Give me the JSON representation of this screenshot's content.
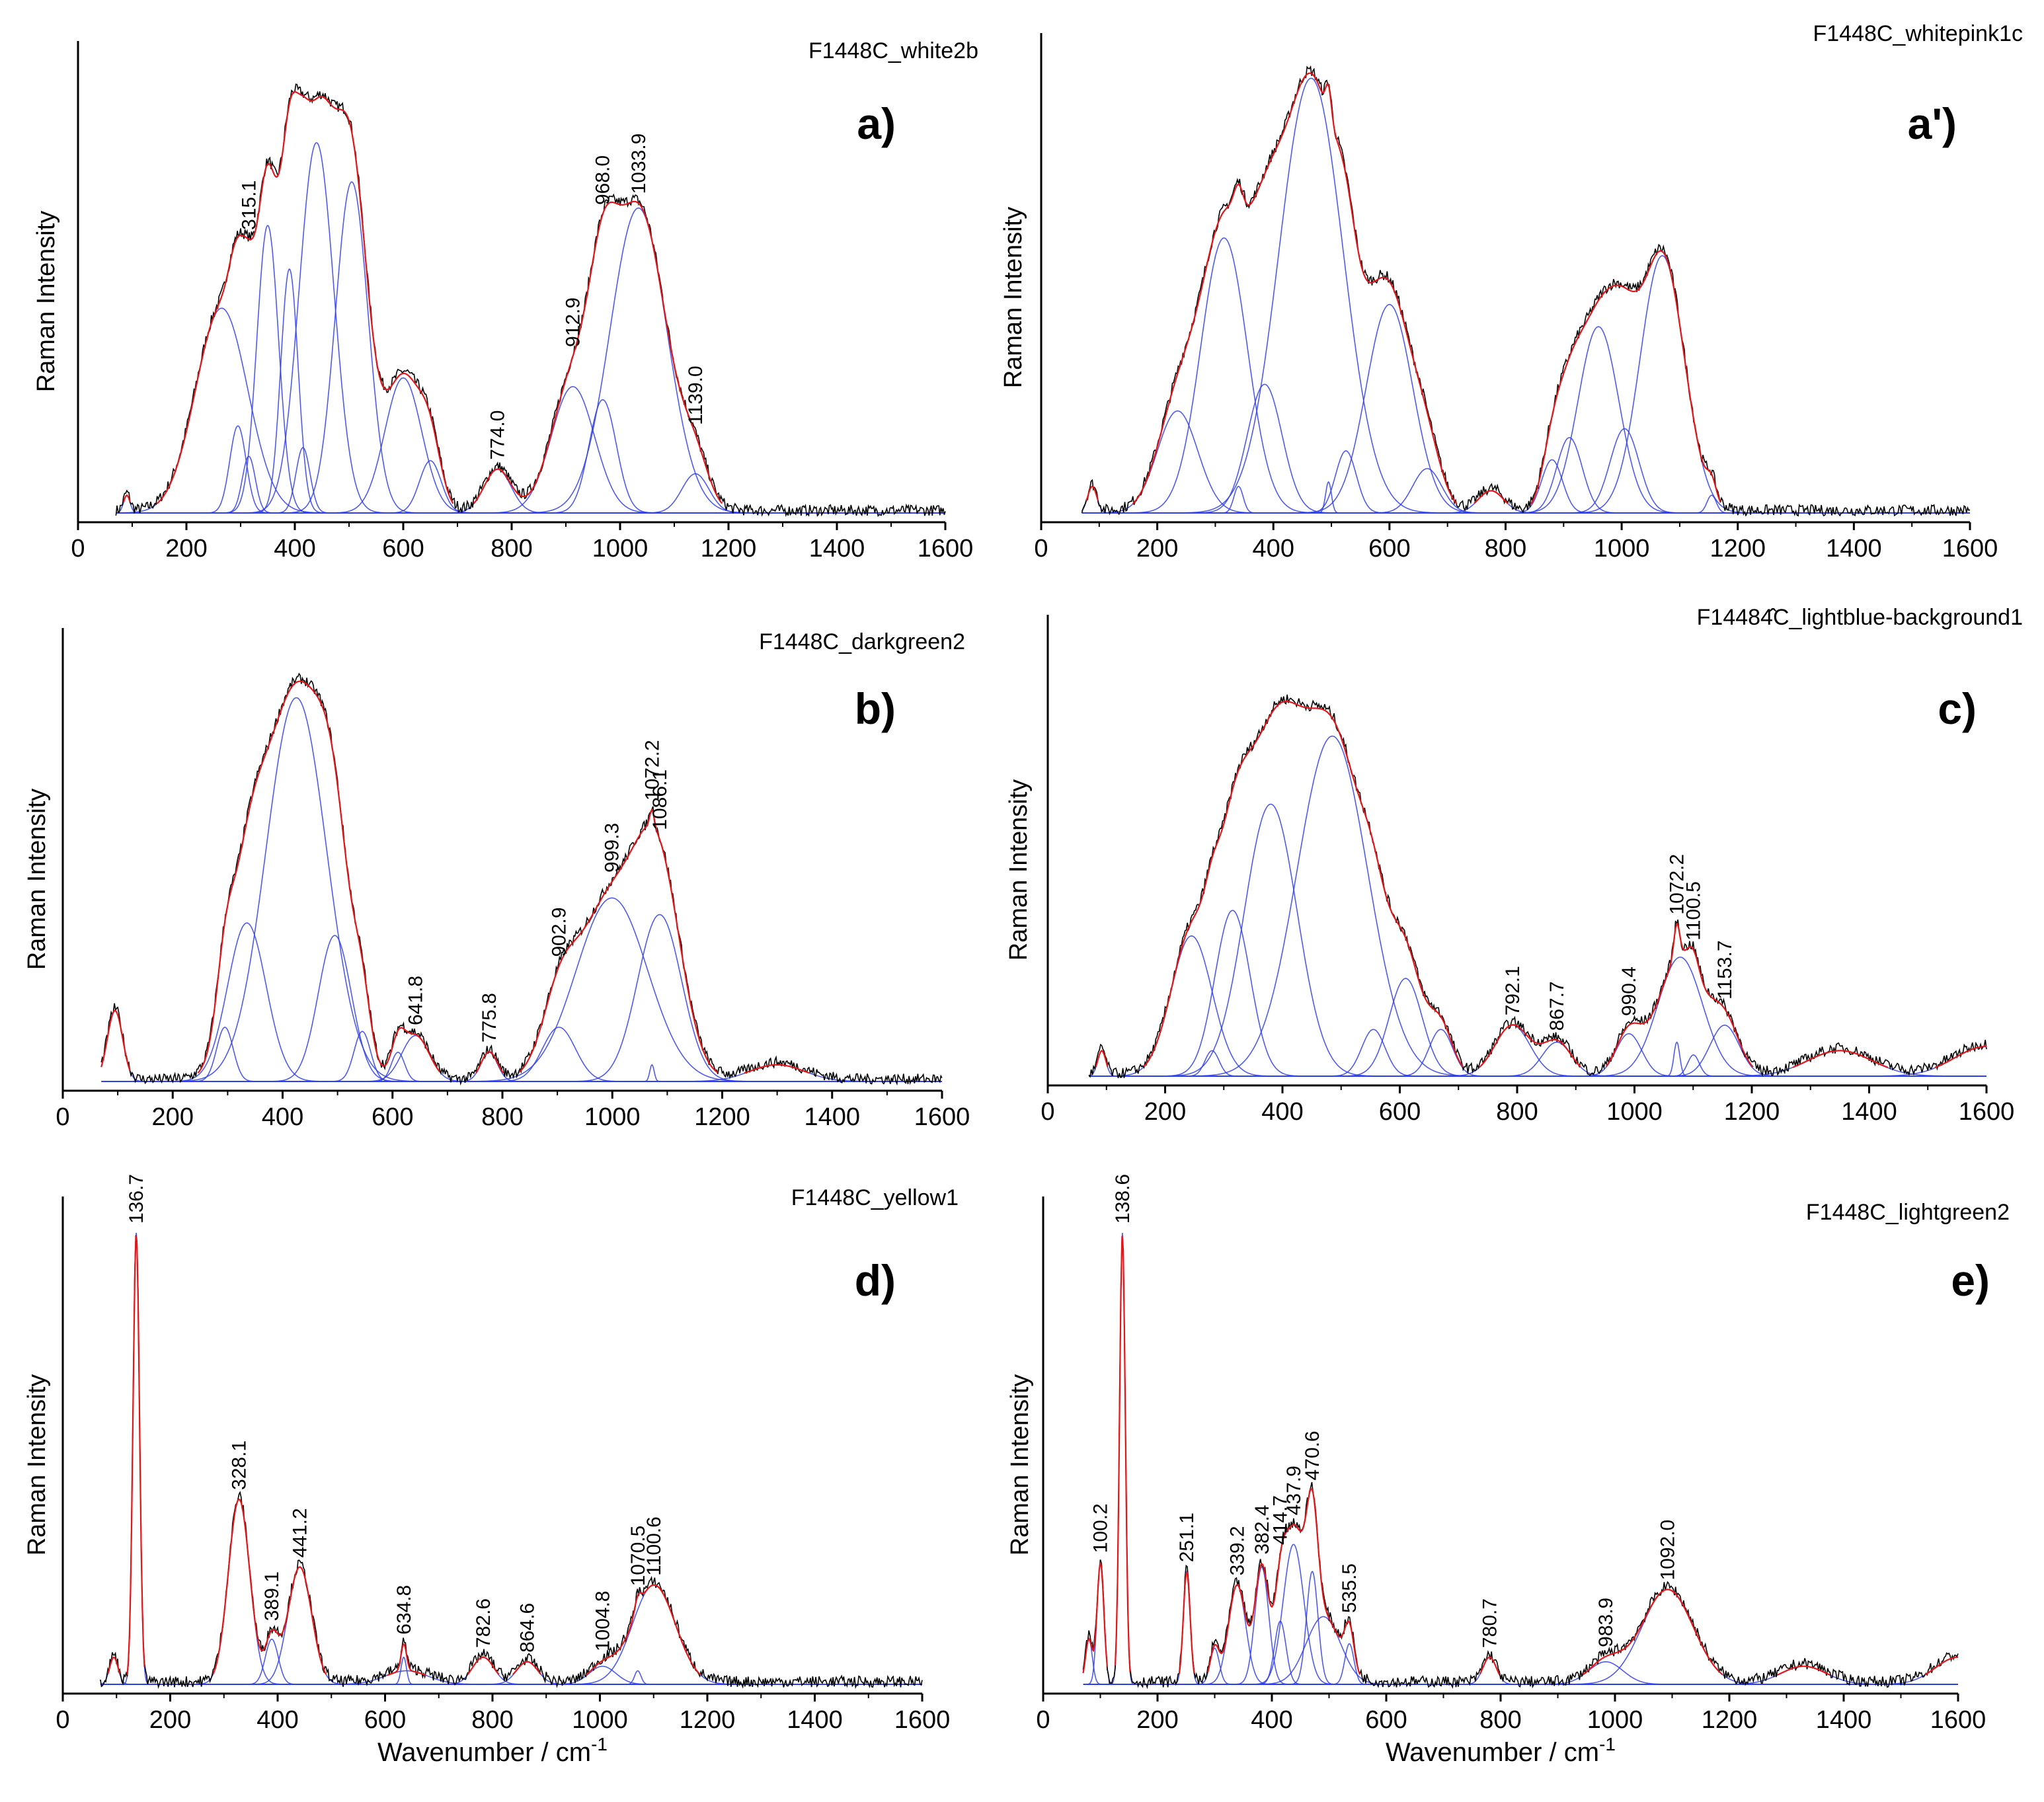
{
  "figure": {
    "y_label": "Raman Intensity",
    "x_label_main": "Wavenumber / cm",
    "x_label_sup": "-1"
  },
  "colors": {
    "measured": "#000000",
    "fit": "#e3161a",
    "component": "#2f3ee6",
    "axis": "#000000",
    "baseline": "#2f3ee6"
  },
  "chart_data": [
    {
      "type": "line",
      "id": "a",
      "letter": "a)",
      "title": "F1448C_white2b",
      "xlim": [
        0,
        1600
      ],
      "xticks": [
        0,
        200,
        400,
        600,
        800,
        1000,
        1200,
        1400,
        1600
      ],
      "ylim": [
        0,
        1
      ],
      "ylabel": "Raman Intensity",
      "xlabel": "",
      "series": [
        {
          "name": "measured"
        },
        {
          "name": "fit"
        },
        {
          "name": "components"
        }
      ],
      "peaks": [
        [
          90,
          0.04,
          6
        ],
        [
          265,
          0.47,
          48
        ],
        [
          295,
          0.2,
          15
        ],
        [
          315.1,
          0.13,
          12
        ],
        [
          350,
          0.66,
          20
        ],
        [
          390,
          0.56,
          16
        ],
        [
          415,
          0.15,
          13
        ],
        [
          440,
          0.85,
          32
        ],
        [
          505,
          0.76,
          30
        ],
        [
          600,
          0.31,
          34
        ],
        [
          650,
          0.12,
          20
        ],
        [
          774,
          0.1,
          25
        ],
        [
          912.9,
          0.29,
          40
        ],
        [
          968,
          0.26,
          25
        ],
        [
          1033.9,
          0.7,
          52
        ],
        [
          1139,
          0.09,
          25
        ]
      ],
      "labels": [
        {
          "x": 315.1,
          "text": "315.1"
        },
        {
          "x": 774.0,
          "text": "774.0"
        },
        {
          "x": 912.9,
          "text": "912.9"
        },
        {
          "x": 968.0,
          "text": "968.0"
        },
        {
          "x": 1033.9,
          "text": "1033.9"
        },
        {
          "x": 1139.0,
          "text": "1139.0"
        }
      ]
    },
    {
      "type": "line",
      "id": "a2",
      "letter": "a')",
      "title": "F1448C_whitepink1c",
      "xlim": [
        0,
        1600
      ],
      "xticks": [
        0,
        200,
        400,
        600,
        800,
        1000,
        1200,
        1400,
        1600
      ],
      "ylim": [
        0,
        1
      ],
      "ylabel": "Raman Intensity",
      "xlabel": "",
      "series": [
        {
          "name": "measured"
        },
        {
          "name": "fit"
        },
        {
          "name": "components"
        }
      ],
      "peaks": [
        [
          88,
          0.06,
          8
        ],
        [
          235,
          0.23,
          35
        ],
        [
          315,
          0.62,
          40
        ],
        [
          340,
          0.06,
          8
        ],
        [
          385,
          0.29,
          30
        ],
        [
          465,
          0.98,
          55
        ],
        [
          495,
          0.07,
          5
        ],
        [
          525,
          0.14,
          18
        ],
        [
          600,
          0.47,
          40
        ],
        [
          665,
          0.1,
          25
        ],
        [
          775,
          0.05,
          22
        ],
        [
          880,
          0.12,
          18
        ],
        [
          910,
          0.17,
          22
        ],
        [
          960,
          0.42,
          35
        ],
        [
          1005,
          0.19,
          25
        ],
        [
          1070,
          0.58,
          38
        ],
        [
          1155,
          0.04,
          8
        ]
      ],
      "labels": []
    },
    {
      "type": "line",
      "id": "b",
      "letter": "b)",
      "title": "F1448C_darkgreen2",
      "xlim": [
        0,
        1600
      ],
      "xticks": [
        0,
        200,
        400,
        600,
        800,
        1000,
        1200,
        1400,
        1600
      ],
      "ylim": [
        0,
        1
      ],
      "ylabel": "Raman Intensity",
      "xlabel": "",
      "series": [
        {
          "name": "measured"
        },
        {
          "name": "fit"
        },
        {
          "name": "components"
        }
      ],
      "peaks": [
        [
          95,
          0.17,
          14
        ],
        [
          295,
          0.13,
          15
        ],
        [
          335,
          0.38,
          35
        ],
        [
          425,
          0.92,
          55
        ],
        [
          495,
          0.35,
          30
        ],
        [
          545,
          0.12,
          15
        ],
        [
          641.8,
          0.11,
          25
        ],
        [
          610,
          0.07,
          12
        ],
        [
          775.8,
          0.07,
          15
        ],
        [
          902.9,
          0.13,
          30
        ],
        [
          999.3,
          0.44,
          65
        ],
        [
          1072.2,
          0.04,
          4
        ],
        [
          1086.1,
          0.4,
          40
        ],
        [
          1300,
          0.04,
          50
        ]
      ],
      "labels": [
        {
          "x": 641.8,
          "text": "641.8"
        },
        {
          "x": 775.8,
          "text": "775.8"
        },
        {
          "x": 902.9,
          "text": "902.9"
        },
        {
          "x": 999.3,
          "text": "999.3"
        },
        {
          "x": 1072.2,
          "text": "1072.2"
        },
        {
          "x": 1086.1,
          "text": "1086.1"
        }
      ]
    },
    {
      "type": "line",
      "id": "c",
      "letter": "c)",
      "title": "F14484̂C_lightblue-background1",
      "xlim": [
        0,
        1600
      ],
      "xticks": [
        0,
        200,
        400,
        600,
        800,
        1000,
        1200,
        1400,
        1600
      ],
      "ylim": [
        0,
        1
      ],
      "ylabel": "Raman Intensity",
      "xlabel": "",
      "series": [
        {
          "name": "measured"
        },
        {
          "name": "fit"
        },
        {
          "name": "components"
        }
      ],
      "peaks": [
        [
          92,
          0.06,
          7
        ],
        [
          245,
          0.33,
          35
        ],
        [
          280,
          0.06,
          12
        ],
        [
          315,
          0.39,
          30
        ],
        [
          380,
          0.64,
          45
        ],
        [
          485,
          0.8,
          60
        ],
        [
          555,
          0.11,
          20
        ],
        [
          610,
          0.23,
          28
        ],
        [
          670,
          0.11,
          20
        ],
        [
          792.1,
          0.12,
          30
        ],
        [
          867.7,
          0.08,
          25
        ],
        [
          990.4,
          0.1,
          22
        ],
        [
          1072.2,
          0.08,
          5
        ],
        [
          1078,
          0.28,
          38
        ],
        [
          1100.5,
          0.05,
          10
        ],
        [
          1153.7,
          0.12,
          25
        ],
        [
          1350,
          0.06,
          55
        ],
        [
          1600,
          0.07,
          55
        ]
      ],
      "labels": [
        {
          "x": 792.1,
          "text": "792.1"
        },
        {
          "x": 867.7,
          "text": "867.7"
        },
        {
          "x": 990.4,
          "text": "990.4"
        },
        {
          "x": 1072.2,
          "text": "1072.2"
        },
        {
          "x": 1100.5,
          "text": "1100.5"
        },
        {
          "x": 1153.7,
          "text": "1153.7"
        }
      ]
    },
    {
      "type": "line",
      "id": "d",
      "letter": "d)",
      "title": "F1448C_yellow1",
      "xlim": [
        0,
        1600
      ],
      "xticks": [
        0,
        200,
        400,
        600,
        800,
        1000,
        1200,
        1400,
        1600
      ],
      "ylim": [
        0,
        1
      ],
      "ylabel": "Raman Intensity",
      "xlabel": "Wavenumber / cm-1",
      "series": [
        {
          "name": "measured"
        },
        {
          "name": "fit"
        },
        {
          "name": "components"
        }
      ],
      "peaks": [
        [
          95,
          0.06,
          8
        ],
        [
          136.7,
          1.0,
          6
        ],
        [
          328.1,
          0.41,
          20
        ],
        [
          389.1,
          0.1,
          12
        ],
        [
          441.2,
          0.26,
          22
        ],
        [
          634.8,
          0.06,
          5
        ],
        [
          640,
          0.03,
          40
        ],
        [
          782.6,
          0.06,
          20
        ],
        [
          864.6,
          0.05,
          20
        ],
        [
          1004.8,
          0.04,
          25
        ],
        [
          1070.5,
          0.03,
          6
        ],
        [
          1100.6,
          0.22,
          40
        ]
      ],
      "labels": [
        {
          "x": 136.7,
          "text": "136.7"
        },
        {
          "x": 328.1,
          "text": "328.1"
        },
        {
          "x": 389.1,
          "text": "389.1"
        },
        {
          "x": 441.2,
          "text": "441.2"
        },
        {
          "x": 634.8,
          "text": "634.8"
        },
        {
          "x": 782.6,
          "text": "782.6"
        },
        {
          "x": 864.6,
          "text": "864.6"
        },
        {
          "x": 1004.8,
          "text": "1004.8"
        },
        {
          "x": 1070.5,
          "text": "1070.5"
        },
        {
          "x": 1100.6,
          "text": "1100.6"
        }
      ]
    },
    {
      "type": "line",
      "id": "e",
      "letter": "e)",
      "title": "F1448C_lightgreen2",
      "xlim": [
        0,
        1600
      ],
      "xticks": [
        0,
        200,
        400,
        600,
        800,
        1000,
        1200,
        1400,
        1600
      ],
      "ylim": [
        0,
        1
      ],
      "ylabel": "Raman Intensity",
      "xlabel": "Wavenumber / cm-1",
      "series": [
        {
          "name": "measured"
        },
        {
          "name": "fit"
        },
        {
          "name": "components"
        }
      ],
      "peaks": [
        [
          80,
          0.1,
          6
        ],
        [
          100.2,
          0.27,
          6
        ],
        [
          138.6,
          1.0,
          5
        ],
        [
          251.1,
          0.25,
          6
        ],
        [
          300,
          0.08,
          8
        ],
        [
          339.2,
          0.22,
          15
        ],
        [
          382.4,
          0.26,
          12
        ],
        [
          414.7,
          0.14,
          10
        ],
        [
          437.9,
          0.31,
          18
        ],
        [
          470.6,
          0.25,
          10
        ],
        [
          490,
          0.15,
          30
        ],
        [
          535.5,
          0.09,
          8
        ],
        [
          780.7,
          0.06,
          12
        ],
        [
          983.9,
          0.05,
          30
        ],
        [
          1092.0,
          0.21,
          45
        ],
        [
          1330,
          0.04,
          40
        ],
        [
          1600,
          0.06,
          40
        ]
      ],
      "labels": [
        {
          "x": 100.2,
          "text": "100.2"
        },
        {
          "x": 138.6,
          "text": "138.6"
        },
        {
          "x": 251.1,
          "text": "251.1"
        },
        {
          "x": 339.2,
          "text": "339.2"
        },
        {
          "x": 382.4,
          "text": "382.4"
        },
        {
          "x": 414.7,
          "text": "414.7"
        },
        {
          "x": 437.9,
          "text": "437.9"
        },
        {
          "x": 470.6,
          "text": "470.6"
        },
        {
          "x": 535.5,
          "text": "535.5"
        },
        {
          "x": 780.7,
          "text": "780.7"
        },
        {
          "x": 983.9,
          "text": "983.9"
        },
        {
          "x": 1092.0,
          "text": "1092.0"
        }
      ]
    }
  ]
}
